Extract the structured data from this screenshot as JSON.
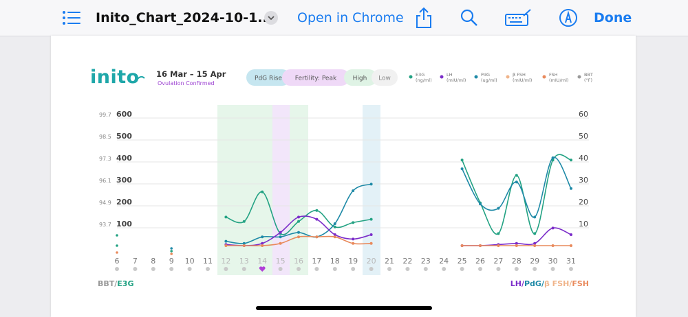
{
  "toolbar": {
    "title": "Inito_Chart_2024-10-1...",
    "open_label": "Open in Chrome",
    "done_label": "Done",
    "icons": [
      "list-icon",
      "chevron-down-icon",
      "share-icon",
      "search-icon",
      "keyboard-annotate-icon",
      "markup-pen-icon"
    ]
  },
  "header": {
    "brand": "inito",
    "date_range": "16 Mar – 15 Apr",
    "status": "Ovulation Confirmed",
    "pills": [
      "PdG Rise",
      "Fertility: Peak",
      "High",
      "Low"
    ]
  },
  "legend": [
    {
      "name": "E3G",
      "unit": "(ng/ml)",
      "color": "#23a283"
    },
    {
      "name": "LH",
      "unit": "(mIU/ml)",
      "color": "#7b2cc9"
    },
    {
      "name": "PdG",
      "unit": "(ug/ml)",
      "color": "#1f8aa7"
    },
    {
      "name": "β FSH",
      "unit": "(mIU/ml)",
      "color": "#f0b48a"
    },
    {
      "name": "FSH",
      "unit": "(mIU/ml)",
      "color": "#e98a5c"
    },
    {
      "name": "BBT",
      "unit": "(°F)",
      "color": "#9a9a9a"
    }
  ],
  "footer": {
    "left": [
      "BBT/",
      "E3G"
    ],
    "right": [
      "LH/",
      "PdG/",
      "β FSH/",
      "FSH"
    ]
  },
  "chart_data": {
    "type": "line",
    "x": [
      6,
      7,
      8,
      9,
      10,
      11,
      12,
      13,
      14,
      15,
      16,
      17,
      18,
      19,
      20,
      21,
      22,
      23,
      24,
      25,
      26,
      27,
      28,
      29,
      30,
      31
    ],
    "x_labels": [
      "6",
      "7",
      "8",
      "9",
      "10",
      "11",
      "12",
      "13",
      "14",
      "15",
      "16",
      "17",
      "18",
      "19",
      "20",
      "21",
      "22",
      "23",
      "24",
      "25",
      "26",
      "27",
      "28",
      "29",
      "30",
      "31"
    ],
    "highlighted_days": [
      "12",
      "13",
      "14",
      "15",
      "16",
      "20"
    ],
    "y_left_ticks": [
      "600",
      "500",
      "400",
      "300",
      "200",
      "100"
    ],
    "bbt_ticks": [
      "99.7",
      "98.5",
      "97.3",
      "96.1",
      "94.9",
      "93.7"
    ],
    "y_right_ticks": [
      "60",
      "50",
      "40",
      "30",
      "20",
      "10"
    ],
    "ylim_left": [
      0,
      600
    ],
    "ylim_right": [
      0,
      60
    ],
    "series": [
      {
        "name": "E3G",
        "axis": "left",
        "color": "#23a283",
        "values": [
          null,
          null,
          null,
          null,
          null,
          null,
          130,
          110,
          245,
          55,
          110,
          160,
          85,
          105,
          120,
          null,
          null,
          null,
          null,
          390,
          195,
          55,
          320,
          55,
          390,
          390
        ]
      },
      {
        "name": "PdG",
        "axis": "right",
        "color": "#1f8aa7",
        "values": [
          null,
          null,
          null,
          null,
          null,
          null,
          2,
          1,
          4,
          4,
          6,
          4,
          10,
          25,
          28,
          null,
          null,
          null,
          null,
          35,
          19,
          17,
          29,
          13,
          40,
          26
        ]
      },
      {
        "name": "LH",
        "axis": "right",
        "color": "#7b2cc9",
        "values": [
          null,
          null,
          null,
          null,
          null,
          null,
          0.5,
          0,
          1,
          6,
          13,
          12,
          5,
          3,
          5,
          null,
          null,
          null,
          null,
          0,
          0,
          0.5,
          1,
          1,
          8,
          5
        ]
      },
      {
        "name": "FSH",
        "axis": "right",
        "color": "#e98a5c",
        "values": [
          null,
          null,
          null,
          null,
          null,
          null,
          0,
          0,
          0,
          1,
          4,
          4,
          4,
          1,
          1,
          null,
          null,
          null,
          null,
          0,
          0,
          0,
          0,
          0,
          0,
          0
        ]
      }
    ]
  }
}
